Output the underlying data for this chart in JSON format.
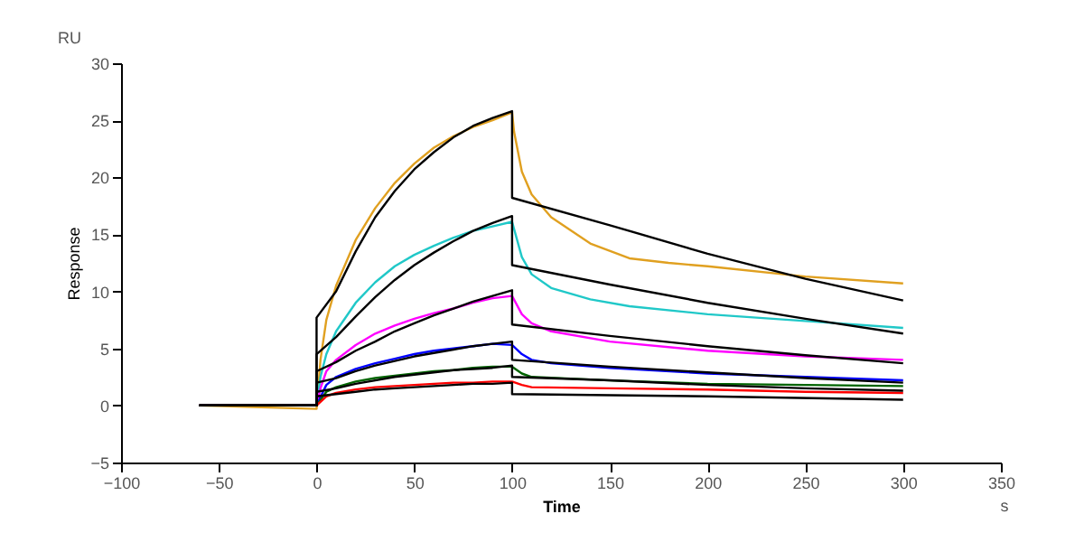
{
  "chart_data": {
    "type": "line",
    "xlabel": "Time",
    "ylabel": "Response",
    "annotations": [
      "RU",
      "s"
    ],
    "xlim": [
      -100,
      350
    ],
    "xticks": [
      -100,
      -50,
      0,
      50,
      100,
      150,
      200,
      250,
      300,
      350
    ],
    "ylim": [
      -5,
      30
    ],
    "yticks": [
      -5,
      0,
      5,
      10,
      15,
      20,
      25,
      30
    ],
    "line_style": "solid",
    "marker": "none",
    "grid": false,
    "series": [
      {
        "color": "#e0a020",
        "x": [
          -60,
          0,
          2,
          5,
          10,
          20,
          30,
          40,
          50,
          60,
          70,
          80,
          90,
          100,
          101,
          105,
          110,
          120,
          140,
          160,
          180,
          200,
          250,
          300
        ],
        "values": [
          0,
          -0.3,
          4,
          7.5,
          10.5,
          14.5,
          17.3,
          19.5,
          21.2,
          22.6,
          23.6,
          24.4,
          25,
          25.7,
          24,
          20.5,
          18.5,
          16.5,
          14.2,
          12.9,
          12.5,
          12.2,
          11.3,
          10.7
        ]
      },
      {
        "color": "#20c8c8",
        "x": [
          -60,
          0,
          2,
          5,
          10,
          20,
          30,
          40,
          50,
          60,
          70,
          80,
          90,
          100,
          105,
          110,
          120,
          140,
          160,
          200,
          250,
          300
        ],
        "values": [
          0,
          0,
          2.5,
          4.5,
          6.5,
          9,
          10.8,
          12.2,
          13.2,
          14,
          14.7,
          15.3,
          15.7,
          16.1,
          13,
          11.5,
          10.3,
          9.3,
          8.7,
          8,
          7.4,
          6.8
        ]
      },
      {
        "color": "#ff00ff",
        "x": [
          -60,
          0,
          2,
          5,
          10,
          20,
          30,
          40,
          50,
          60,
          70,
          80,
          90,
          100,
          105,
          110,
          120,
          150,
          200,
          250,
          300
        ],
        "values": [
          0,
          0,
          1.5,
          3,
          4,
          5.3,
          6.3,
          7,
          7.6,
          8.1,
          8.5,
          9,
          9.4,
          9.6,
          8,
          7.2,
          6.5,
          5.6,
          4.8,
          4.3,
          4
        ]
      },
      {
        "color": "#0000ff",
        "x": [
          -60,
          0,
          5,
          10,
          20,
          30,
          40,
          50,
          60,
          70,
          80,
          90,
          100,
          105,
          110,
          120,
          150,
          200,
          250,
          300
        ],
        "values": [
          0,
          0,
          1.8,
          2.5,
          3.2,
          3.7,
          4.1,
          4.5,
          4.8,
          5,
          5.2,
          5.4,
          5.3,
          4.5,
          4,
          3.7,
          3.3,
          2.8,
          2.5,
          2.2
        ]
      },
      {
        "color": "#006400",
        "x": [
          -60,
          0,
          5,
          10,
          20,
          30,
          40,
          50,
          60,
          70,
          80,
          90,
          100,
          105,
          110,
          150,
          200,
          250,
          300
        ],
        "values": [
          0,
          0,
          1.2,
          1.6,
          2.1,
          2.4,
          2.6,
          2.8,
          3,
          3.1,
          3.3,
          3.4,
          3.4,
          2.8,
          2.5,
          2.2,
          1.9,
          1.8,
          1.7
        ]
      },
      {
        "color": "#ff0000",
        "x": [
          -60,
          0,
          5,
          10,
          20,
          30,
          40,
          50,
          60,
          70,
          80,
          90,
          100,
          105,
          110,
          150,
          200,
          250,
          300
        ],
        "values": [
          0,
          0,
          0.8,
          1.1,
          1.4,
          1.6,
          1.7,
          1.8,
          1.9,
          2,
          2,
          2.1,
          2.1,
          1.8,
          1.6,
          1.5,
          1.4,
          1.2,
          1.1
        ]
      },
      {
        "color": "#000000",
        "x": [
          -60,
          0,
          0,
          10,
          20,
          30,
          40,
          50,
          60,
          70,
          80,
          90,
          100,
          100,
          150,
          200,
          250,
          300
        ],
        "values": [
          0,
          0,
          7.7,
          10,
          13.5,
          16.5,
          18.8,
          20.7,
          22.2,
          23.5,
          24.5,
          25.2,
          25.8,
          18.2,
          15.8,
          13.3,
          11.1,
          9.2
        ]
      },
      {
        "color": "#000000",
        "x": [
          -60,
          0,
          0,
          10,
          20,
          30,
          40,
          50,
          60,
          70,
          80,
          90,
          100,
          100,
          150,
          200,
          250,
          300
        ],
        "values": [
          0,
          0,
          4.5,
          6,
          7.8,
          9.5,
          11,
          12.3,
          13.4,
          14.4,
          15.3,
          16,
          16.6,
          12.3,
          10.6,
          9,
          7.6,
          6.3
        ]
      },
      {
        "color": "#000000",
        "x": [
          -60,
          0,
          0,
          10,
          20,
          30,
          40,
          50,
          60,
          70,
          80,
          90,
          100,
          100,
          150,
          200,
          250,
          300
        ],
        "values": [
          0,
          0,
          3,
          3.8,
          4.8,
          5.6,
          6.5,
          7.2,
          7.9,
          8.5,
          9.1,
          9.6,
          10.1,
          7.1,
          6.1,
          5.2,
          4.4,
          3.7
        ]
      },
      {
        "color": "#000000",
        "x": [
          -60,
          0,
          0,
          10,
          20,
          30,
          40,
          50,
          60,
          70,
          80,
          90,
          100,
          100,
          150,
          200,
          250,
          300
        ],
        "values": [
          0,
          0,
          2,
          2.4,
          3,
          3.5,
          3.9,
          4.3,
          4.6,
          4.9,
          5.2,
          5.4,
          5.6,
          4,
          3.4,
          2.9,
          2.4,
          2
        ]
      },
      {
        "color": "#000000",
        "x": [
          -60,
          0,
          0,
          10,
          20,
          30,
          40,
          50,
          60,
          70,
          80,
          90,
          100,
          100,
          150,
          200,
          250,
          300
        ],
        "values": [
          0,
          0,
          1.2,
          1.5,
          1.9,
          2.2,
          2.5,
          2.7,
          2.9,
          3.1,
          3.2,
          3.3,
          3.5,
          2.5,
          2.2,
          1.8,
          1.5,
          1.3
        ]
      },
      {
        "color": "#000000",
        "x": [
          -60,
          0,
          0,
          10,
          20,
          30,
          40,
          50,
          60,
          70,
          80,
          90,
          100,
          100,
          200,
          300
        ],
        "values": [
          0,
          0,
          0.8,
          1,
          1.2,
          1.4,
          1.5,
          1.6,
          1.7,
          1.8,
          1.9,
          1.9,
          2,
          1,
          0.8,
          0.5
        ]
      }
    ]
  }
}
